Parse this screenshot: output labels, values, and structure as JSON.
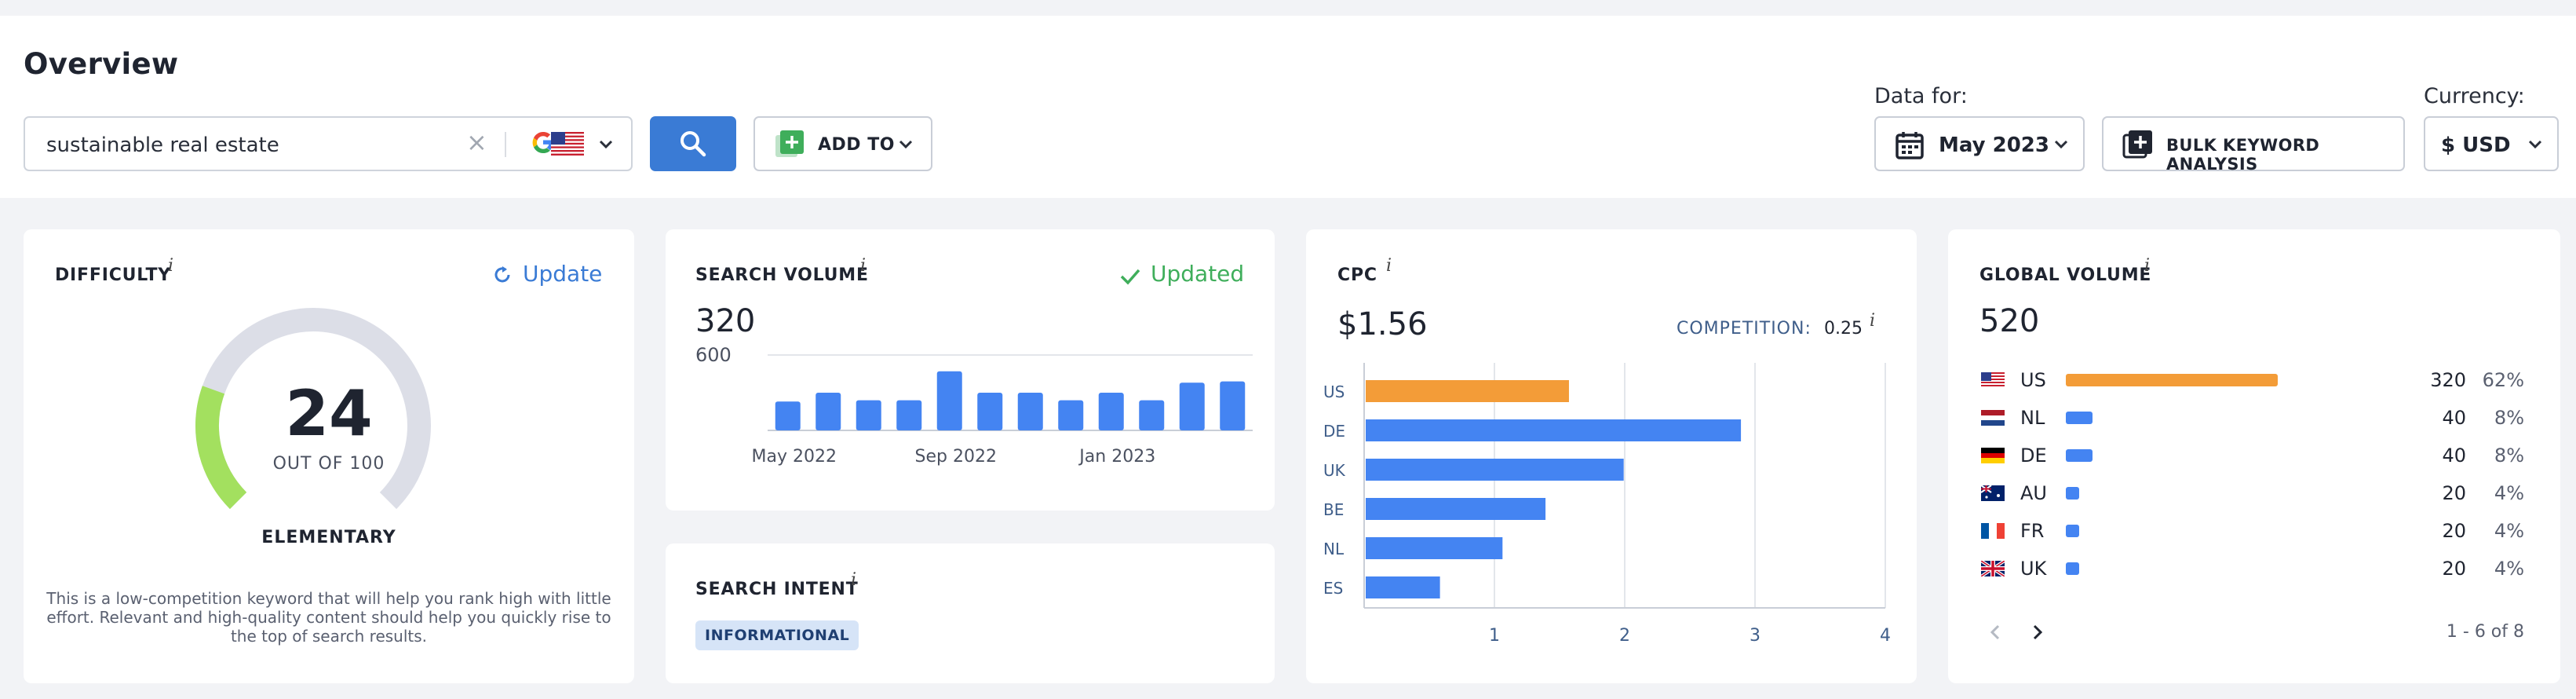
{
  "header": {
    "title": "Overview",
    "search": {
      "value": "sustainable real estate",
      "engine": "G"
    },
    "add_to_label": "ADD TO",
    "data_for_label": "Data for:",
    "date_value": "May 2023",
    "bulk_label": "BULK KEYWORD ANALYSIS",
    "currency_label": "Currency:",
    "currency_value": "$ USD"
  },
  "difficulty": {
    "title": "DIFFICULTY",
    "info": "i",
    "update_label": "Update",
    "value": "24",
    "max_label": "OUT OF 100",
    "score": 24,
    "level": "ELEMENTARY",
    "description_lines": [
      "This is a low-competition keyword that will help you rank high with little",
      "effort. Relevant and high-quality content should help you quickly rise to",
      "the top of search results."
    ]
  },
  "search_volume": {
    "title": "SEARCH VOLUME",
    "info": "i",
    "status": "Updated",
    "value": "320",
    "axis_max_label": "600",
    "chart_data": {
      "type": "bar",
      "ylim": [
        0,
        600
      ],
      "values": [
        230,
        300,
        240,
        240,
        470,
        300,
        300,
        240,
        300,
        240,
        380,
        390
      ],
      "tick_labels": [
        "May 2022",
        "Sep 2022",
        "Jan 2023"
      ],
      "tick_indices": [
        0,
        4,
        8
      ],
      "color": "#4484f2"
    }
  },
  "search_intent": {
    "title": "SEARCH INTENT",
    "info": "i",
    "badge": "INFORMATIONAL"
  },
  "cpc": {
    "title": "CPC",
    "info": "i",
    "value": "$1.56",
    "competition_label": "COMPETITION:",
    "competition_value": "0.25",
    "chart_data": {
      "type": "bar",
      "orientation": "horizontal",
      "categories": [
        "US",
        "DE",
        "UK",
        "BE",
        "NL",
        "ES"
      ],
      "values": [
        1.56,
        2.88,
        1.98,
        1.38,
        1.05,
        0.57
      ],
      "xlim": [
        0,
        4
      ],
      "x_ticks": [
        "1",
        "2",
        "3",
        "4"
      ],
      "highlight_color": "#f39c38",
      "color": "#4484f2"
    }
  },
  "global_volume": {
    "title": "GLOBAL VOLUME",
    "info": "i",
    "value": "520",
    "chart_data": {
      "type": "bar",
      "orientation": "horizontal",
      "max": 320,
      "rows": [
        {
          "country": "US",
          "volume": "320",
          "share": "62%",
          "v": 320,
          "color": "#f39c38"
        },
        {
          "country": "NL",
          "volume": "40",
          "share": "8%",
          "v": 40,
          "color": "#4484f2"
        },
        {
          "country": "DE",
          "volume": "40",
          "share": "8%",
          "v": 40,
          "color": "#4484f2"
        },
        {
          "country": "AU",
          "volume": "20",
          "share": "4%",
          "v": 20,
          "color": "#4484f2"
        },
        {
          "country": "FR",
          "volume": "20",
          "share": "4%",
          "v": 20,
          "color": "#4484f2"
        },
        {
          "country": "UK",
          "volume": "20",
          "share": "4%",
          "v": 20,
          "color": "#4484f2"
        }
      ]
    },
    "pagination": "1 - 6 of 8"
  }
}
